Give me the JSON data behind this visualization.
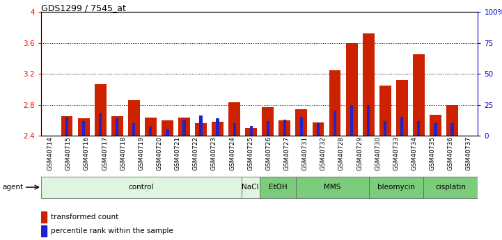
{
  "title": "GDS1299 / 7545_at",
  "samples": [
    "GSM40714",
    "GSM40715",
    "GSM40716",
    "GSM40717",
    "GSM40718",
    "GSM40719",
    "GSM40720",
    "GSM40721",
    "GSM40722",
    "GSM40723",
    "GSM40724",
    "GSM40725",
    "GSM40726",
    "GSM40727",
    "GSM40731",
    "GSM40732",
    "GSM40728",
    "GSM40729",
    "GSM40730",
    "GSM40733",
    "GSM40734",
    "GSM40735",
    "GSM40736",
    "GSM40737"
  ],
  "red_values": [
    2.65,
    2.62,
    3.07,
    2.65,
    2.86,
    2.63,
    2.6,
    2.63,
    2.56,
    2.58,
    2.83,
    2.5,
    2.77,
    2.6,
    2.74,
    2.57,
    3.25,
    3.6,
    3.72,
    3.05,
    3.12,
    3.45,
    2.67,
    2.8
  ],
  "blue_values": [
    15,
    12,
    18,
    14,
    10,
    7,
    5,
    13,
    16,
    14,
    10,
    8,
    12,
    13,
    15,
    10,
    20,
    25,
    25,
    12,
    15,
    12,
    10,
    10
  ],
  "agents": [
    {
      "label": "control",
      "start": 0,
      "end": 11
    },
    {
      "label": "NaCl",
      "start": 11,
      "end": 12
    },
    {
      "label": "EtOH",
      "start": 12,
      "end": 14
    },
    {
      "label": "MMS",
      "start": 14,
      "end": 18
    },
    {
      "label": "bleomycin",
      "start": 18,
      "end": 21
    },
    {
      "label": "cisplatin",
      "start": 21,
      "end": 24
    }
  ],
  "agent_colors": {
    "control": "#e0f5e0",
    "NaCl": "#e0f5e0",
    "EtOH": "#7bcc7b",
    "MMS": "#7bcc7b",
    "bleomycin": "#7bcc7b",
    "cisplatin": "#7bcc7b"
  },
  "ylim_left": [
    2.4,
    4.0
  ],
  "ylim_right": [
    0,
    100
  ],
  "yticks_left": [
    2.4,
    2.8,
    3.2,
    3.6,
    4.0
  ],
  "ytick_labels_left": [
    "2.4",
    "2.8",
    "3.2",
    "3.6",
    "4"
  ],
  "yticks_right": [
    0,
    25,
    50,
    75,
    100
  ],
  "ytick_labels_right": [
    "0",
    "25",
    "50",
    "75",
    "100%"
  ],
  "bar_color": "#CC2200",
  "dot_color": "#2222CC",
  "bg_color": "#ffffff"
}
